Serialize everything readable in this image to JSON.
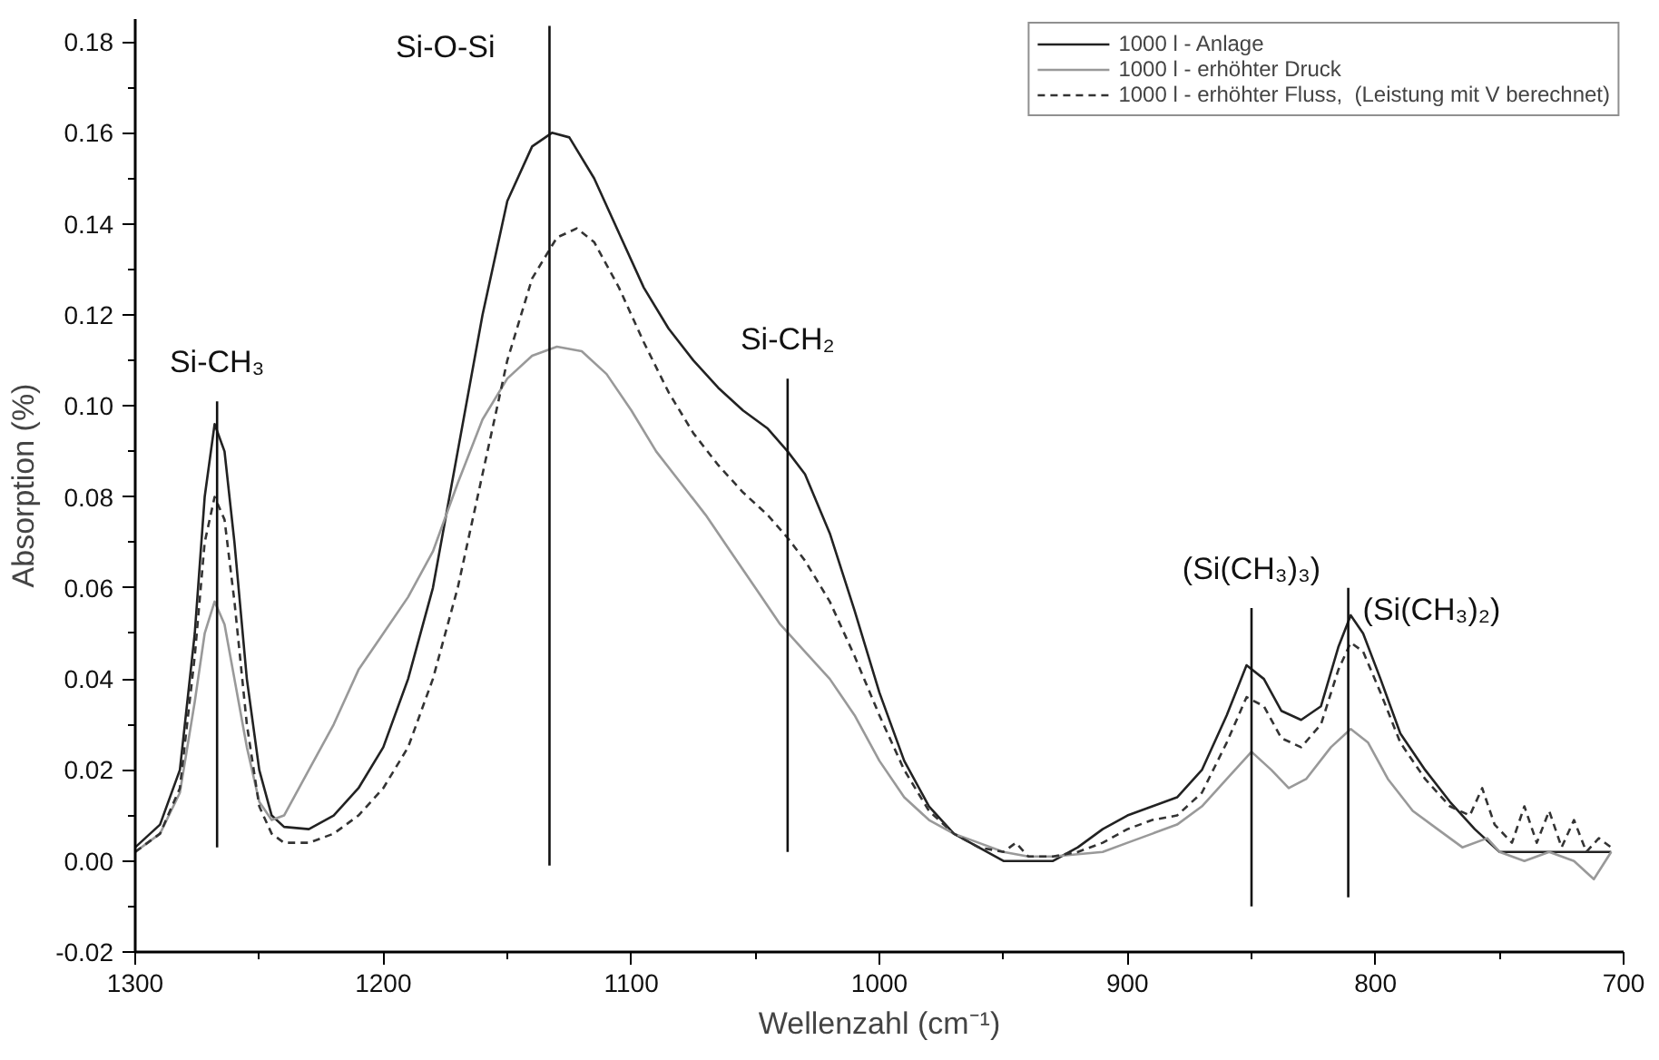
{
  "chart_data": {
    "type": "line",
    "xlabel": "Wellenzahl (cm⁻¹)",
    "ylabel": "Absorption (%)",
    "xlim": [
      1300,
      700
    ],
    "ylim": [
      -0.02,
      0.185
    ],
    "xticks": [
      1300,
      1200,
      1100,
      1000,
      900,
      800,
      700
    ],
    "yticks": [
      {
        "value": -0.02,
        "label": "-0.02"
      },
      {
        "value": 0.0,
        "label": "0.00"
      },
      {
        "value": 0.02,
        "label": "0.02"
      },
      {
        "value": 0.04,
        "label": "0.04"
      },
      {
        "value": 0.06,
        "label": "0.06"
      },
      {
        "value": 0.08,
        "label": "0.08"
      },
      {
        "value": 0.1,
        "label": "0.10"
      },
      {
        "value": 0.12,
        "label": "0.12"
      },
      {
        "value": 0.14,
        "label": "0.14"
      },
      {
        "value": 0.16,
        "label": "0.16"
      },
      {
        "value": 0.18,
        "label": "0.18"
      }
    ],
    "grid": false,
    "legend": "top right",
    "marker": "none",
    "series": [
      {
        "name": "1000 l - Anlage",
        "color": "#222222",
        "line_style": "solid",
        "x": [
          1300,
          1290,
          1282,
          1276,
          1272,
          1268,
          1264,
          1260,
          1255,
          1250,
          1245,
          1240,
          1230,
          1220,
          1210,
          1200,
          1190,
          1180,
          1170,
          1160,
          1150,
          1140,
          1132,
          1125,
          1115,
          1105,
          1095,
          1085,
          1075,
          1065,
          1055,
          1045,
          1037,
          1030,
          1020,
          1010,
          1000,
          990,
          980,
          970,
          960,
          950,
          940,
          930,
          920,
          910,
          900,
          890,
          880,
          870,
          860,
          852,
          845,
          838,
          830,
          822,
          815,
          810,
          805,
          798,
          790,
          780,
          770,
          760,
          750,
          740,
          720,
          705
        ],
        "values": [
          0.003,
          0.008,
          0.02,
          0.05,
          0.08,
          0.096,
          0.09,
          0.07,
          0.04,
          0.02,
          0.01,
          0.0075,
          0.007,
          0.01,
          0.016,
          0.025,
          0.04,
          0.06,
          0.09,
          0.12,
          0.145,
          0.157,
          0.16,
          0.159,
          0.15,
          0.138,
          0.126,
          0.117,
          0.11,
          0.104,
          0.099,
          0.095,
          0.09,
          0.085,
          0.072,
          0.055,
          0.037,
          0.022,
          0.012,
          0.006,
          0.003,
          0.0,
          0.0,
          0.0,
          0.003,
          0.007,
          0.01,
          0.012,
          0.014,
          0.02,
          0.032,
          0.043,
          0.04,
          0.033,
          0.031,
          0.034,
          0.047,
          0.054,
          0.05,
          0.04,
          0.028,
          0.02,
          0.013,
          0.007,
          0.002,
          0.002,
          0.002,
          0.002
        ]
      },
      {
        "name": "1000 l - erhöhter Druck",
        "color": "#999999",
        "line_style": "solid",
        "x": [
          1300,
          1290,
          1282,
          1276,
          1272,
          1268,
          1264,
          1260,
          1255,
          1250,
          1245,
          1240,
          1230,
          1220,
          1210,
          1200,
          1190,
          1180,
          1170,
          1160,
          1150,
          1140,
          1130,
          1120,
          1110,
          1100,
          1090,
          1080,
          1070,
          1060,
          1050,
          1040,
          1030,
          1020,
          1010,
          1000,
          990,
          980,
          970,
          960,
          950,
          940,
          930,
          910,
          900,
          890,
          880,
          870,
          860,
          850,
          842,
          835,
          828,
          818,
          810,
          803,
          795,
          785,
          775,
          765,
          755,
          750,
          740,
          730,
          720,
          712,
          705
        ],
        "values": [
          0.002,
          0.006,
          0.015,
          0.035,
          0.05,
          0.057,
          0.052,
          0.04,
          0.025,
          0.013,
          0.009,
          0.01,
          0.02,
          0.03,
          0.042,
          0.05,
          0.058,
          0.068,
          0.083,
          0.097,
          0.106,
          0.111,
          0.113,
          0.112,
          0.107,
          0.099,
          0.09,
          0.083,
          0.076,
          0.068,
          0.06,
          0.052,
          0.046,
          0.04,
          0.032,
          0.022,
          0.014,
          0.009,
          0.006,
          0.004,
          0.002,
          0.001,
          0.001,
          0.002,
          0.004,
          0.006,
          0.008,
          0.012,
          0.018,
          0.024,
          0.02,
          0.016,
          0.018,
          0.025,
          0.029,
          0.026,
          0.018,
          0.011,
          0.007,
          0.003,
          0.005,
          0.002,
          0.0,
          0.002,
          0.0,
          -0.004,
          0.002
        ]
      },
      {
        "name": "1000 l - erhöhter Fluss,  (Leistung mit V berechnet)",
        "color": "#333333",
        "line_style": "dashed",
        "x": [
          1300,
          1290,
          1282,
          1276,
          1272,
          1268,
          1264,
          1260,
          1255,
          1250,
          1245,
          1240,
          1230,
          1220,
          1210,
          1200,
          1190,
          1180,
          1170,
          1160,
          1150,
          1140,
          1130,
          1122,
          1115,
          1105,
          1095,
          1085,
          1075,
          1065,
          1055,
          1045,
          1037,
          1030,
          1020,
          1010,
          1000,
          990,
          980,
          970,
          960,
          950,
          945,
          940,
          930,
          920,
          910,
          900,
          890,
          880,
          870,
          860,
          852,
          845,
          838,
          830,
          822,
          815,
          810,
          805,
          798,
          790,
          780,
          770,
          762,
          757,
          752,
          745,
          740,
          735,
          730,
          725,
          720,
          715,
          710,
          705
        ],
        "values": [
          0.002,
          0.006,
          0.016,
          0.045,
          0.07,
          0.08,
          0.075,
          0.057,
          0.03,
          0.012,
          0.006,
          0.004,
          0.004,
          0.006,
          0.01,
          0.016,
          0.025,
          0.04,
          0.06,
          0.085,
          0.11,
          0.128,
          0.137,
          0.139,
          0.136,
          0.126,
          0.114,
          0.103,
          0.094,
          0.087,
          0.081,
          0.076,
          0.071,
          0.066,
          0.057,
          0.045,
          0.032,
          0.02,
          0.011,
          0.006,
          0.003,
          0.002,
          0.004,
          0.001,
          0.001,
          0.002,
          0.004,
          0.007,
          0.009,
          0.01,
          0.015,
          0.026,
          0.036,
          0.034,
          0.027,
          0.025,
          0.03,
          0.042,
          0.048,
          0.046,
          0.037,
          0.026,
          0.018,
          0.012,
          0.01,
          0.016,
          0.008,
          0.004,
          0.012,
          0.004,
          0.011,
          0.003,
          0.009,
          0.002,
          0.005,
          0.003
        ]
      },
      {
        "type": "line",
        "color": "#111111",
        "line_style": "solid",
        "x": [
          1267,
          1267
        ],
        "values": [
          0.101,
          0.003
        ]
      },
      {
        "type": "line",
        "color": "#111111",
        "line_style": "solid",
        "x": [
          1133,
          1133
        ],
        "values": [
          0.1835,
          -0.001
        ]
      },
      {
        "type": "line",
        "color": "#111111",
        "line_style": "solid",
        "x": [
          1037,
          1037
        ],
        "values": [
          0.106,
          0.002
        ]
      },
      {
        "type": "line",
        "color": "#111111",
        "line_style": "solid",
        "x": [
          850,
          850
        ],
        "values": [
          0.0556,
          -0.01
        ]
      },
      {
        "type": "line",
        "color": "#111111",
        "line_style": "solid",
        "x": [
          811,
          811
        ],
        "values": [
          0.06,
          -0.008
        ]
      }
    ],
    "annotations": [
      {
        "text": "Si-CH₃",
        "x": 1267,
        "y": 0.101
      },
      {
        "text": "Si-O-Si",
        "x": 1133,
        "y": 0.1835
      },
      {
        "text": "Si-CH₂",
        "x": 1037,
        "y": 0.106
      },
      {
        "text": "(Si(CH₃)₃)",
        "x": 850,
        "y": 0.0556
      },
      {
        "text": "(Si(CH₃)₂)",
        "x": 811,
        "y": 0.06
      }
    ]
  }
}
